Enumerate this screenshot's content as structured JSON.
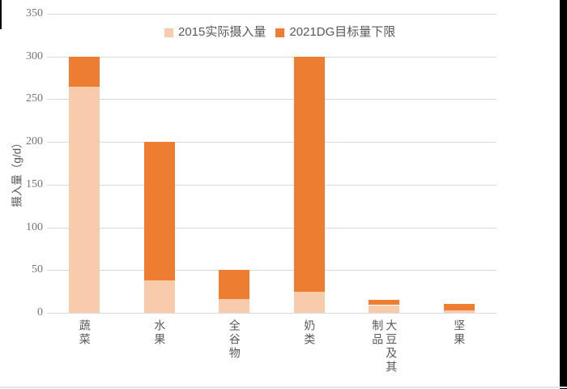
{
  "chart_data": {
    "type": "bar",
    "stacked": true,
    "ylabel": "摄入量（g/d）",
    "ylim": [
      0,
      350
    ],
    "yticks": [
      0,
      50,
      100,
      150,
      200,
      250,
      300,
      350
    ],
    "grid": true,
    "legend_position": "top-center",
    "categories": [
      "蔬菜",
      "水果",
      "全谷物",
      "奶类",
      "大豆及其制品",
      "坚果"
    ],
    "series": [
      {
        "name": "2015实际摄入量",
        "color": "#F8CBAD",
        "values": [
          265,
          38,
          16,
          25,
          9,
          3
        ]
      },
      {
        "name": "2021DG目标量下限",
        "color": "#ED7D31",
        "values": [
          300,
          200,
          50,
          300,
          15,
          10
        ],
        "note": "stacked segment drawn from 2015 value up to this target total",
        "segment_heights": [
          35,
          162,
          34,
          275,
          6,
          7
        ]
      }
    ]
  },
  "style": {
    "gridline_color": "#d9d9d9",
    "text_color": "#595959",
    "tick_color": "#757575",
    "background": "#ffffff"
  }
}
